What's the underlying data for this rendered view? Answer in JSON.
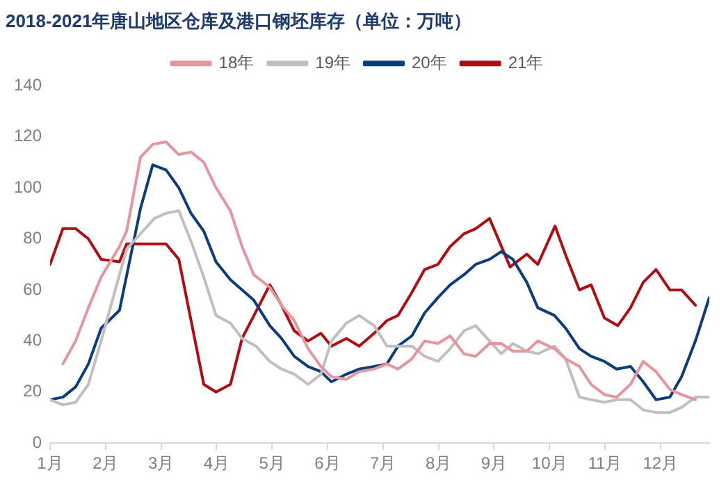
{
  "chart_data": {
    "type": "line",
    "title": "2018-2021年唐山地区仓库及港口钢坯库存（单位：万吨）",
    "xlim": [
      1,
      12.88
    ],
    "xticks": [
      {
        "value": 1,
        "label": "1月"
      },
      {
        "value": 2,
        "label": "2月"
      },
      {
        "value": 3,
        "label": "3月"
      },
      {
        "value": 4,
        "label": "4月"
      },
      {
        "value": 5,
        "label": "5月"
      },
      {
        "value": 6,
        "label": "6月"
      },
      {
        "value": 7,
        "label": "7月"
      },
      {
        "value": 8,
        "label": "8月"
      },
      {
        "value": 9,
        "label": "9月"
      },
      {
        "value": 10,
        "label": "10月"
      },
      {
        "value": 11,
        "label": "11月"
      },
      {
        "value": 12,
        "label": "12月"
      }
    ],
    "ylim": [
      0,
      140
    ],
    "yticks": [
      0,
      20,
      40,
      60,
      80,
      100,
      120,
      140
    ],
    "grid": false,
    "legend": "top",
    "marker": "none",
    "line_style": "solid",
    "series": [
      {
        "name": "18年",
        "color": "#e8949e",
        "x": [
          1.23,
          1.46,
          1.69,
          1.92,
          2.25,
          2.38,
          2.63,
          2.85,
          3.09,
          3.32,
          3.54,
          3.77,
          3.99,
          4.25,
          4.46,
          4.67,
          4.96,
          5.17,
          5.4,
          5.65,
          5.88,
          6.07,
          6.34,
          6.57,
          6.84,
          7.07,
          7.27,
          7.52,
          7.75,
          7.99,
          8.21,
          8.46,
          8.67,
          8.92,
          9.13,
          9.34,
          9.59,
          9.79,
          10.09,
          10.29,
          10.54,
          10.75,
          10.99,
          11.21,
          11.46,
          11.69,
          11.92,
          12.17,
          12.38,
          12.63
        ],
        "values": [
          31,
          40,
          53,
          65,
          77,
          83,
          112,
          117,
          118,
          113,
          114,
          110,
          100,
          91,
          77,
          66,
          61,
          54,
          48,
          37,
          30,
          26,
          25,
          28,
          29,
          31,
          29,
          33,
          40,
          39,
          42,
          35,
          34,
          39,
          39,
          36,
          36,
          40,
          37,
          33,
          30,
          23,
          19,
          18,
          23,
          32,
          28,
          21,
          19,
          17
        ]
      },
      {
        "name": "19年",
        "color": "#bfbfbf",
        "x": [
          1.0,
          1.23,
          1.46,
          1.69,
          1.92,
          2.25,
          2.38,
          2.67,
          2.88,
          3.09,
          3.32,
          3.54,
          3.77,
          3.99,
          4.25,
          4.46,
          4.71,
          4.96,
          5.17,
          5.4,
          5.65,
          5.88,
          6.07,
          6.34,
          6.57,
          6.84,
          7.07,
          7.27,
          7.52,
          7.75,
          7.99,
          8.21,
          8.46,
          8.67,
          8.92,
          9.13,
          9.34,
          9.59,
          9.79,
          10.09,
          10.29,
          10.54,
          10.75,
          10.99,
          11.21,
          11.46,
          11.69,
          11.92,
          12.17,
          12.38,
          12.63,
          12.88
        ],
        "values": [
          17,
          15,
          16,
          23,
          40,
          66,
          76,
          83,
          88,
          90,
          91,
          79,
          65,
          50,
          47,
          41,
          38,
          32,
          29,
          27,
          23,
          27,
          40,
          47,
          50,
          46,
          38,
          38,
          38,
          34,
          32,
          37,
          44,
          46,
          40,
          35,
          39,
          36,
          35,
          38,
          33,
          18,
          17,
          16,
          17,
          17,
          13,
          12,
          12,
          14,
          18,
          18
        ]
      },
      {
        "name": "20年",
        "color": "#0b3c7d",
        "x": [
          1.0,
          1.23,
          1.46,
          1.69,
          1.92,
          2.25,
          2.63,
          2.85,
          3.09,
          3.32,
          3.54,
          3.77,
          3.99,
          4.25,
          4.67,
          4.96,
          5.17,
          5.4,
          5.65,
          5.88,
          6.07,
          6.34,
          6.57,
          6.84,
          7.07,
          7.27,
          7.52,
          7.75,
          7.99,
          8.21,
          8.46,
          8.67,
          8.92,
          9.13,
          9.34,
          9.59,
          9.79,
          10.09,
          10.29,
          10.54,
          10.75,
          10.99,
          11.21,
          11.46,
          11.69,
          11.92,
          12.17,
          12.38,
          12.63,
          12.88
        ],
        "values": [
          17,
          18,
          22,
          31,
          45,
          52,
          92,
          109,
          107,
          100,
          90,
          83,
          71,
          64,
          56,
          46,
          41,
          34,
          30,
          28,
          24,
          27,
          29,
          30,
          31,
          38,
          42,
          51,
          57,
          62,
          66,
          70,
          72,
          75,
          72,
          63,
          53,
          50,
          45,
          37,
          34,
          32,
          29,
          30,
          24,
          17,
          18,
          26,
          40,
          57
        ]
      },
      {
        "name": "21年",
        "color": "#b00c12",
        "x": [
          1.0,
          1.23,
          1.46,
          1.69,
          1.92,
          2.25,
          2.38,
          2.67,
          2.88,
          3.09,
          3.32,
          3.77,
          3.99,
          4.25,
          4.46,
          4.96,
          5.17,
          5.4,
          5.65,
          5.88,
          6.07,
          6.34,
          6.57,
          6.84,
          7.07,
          7.27,
          7.52,
          7.75,
          7.99,
          8.21,
          8.46,
          8.67,
          8.92,
          9.29,
          9.59,
          9.79,
          10.1,
          10.32,
          10.54,
          10.75,
          10.99,
          11.23,
          11.46,
          11.69,
          11.92,
          12.17,
          12.38,
          12.63
        ],
        "values": [
          70,
          84,
          84,
          80,
          72,
          71,
          78,
          78,
          78,
          78,
          72,
          23,
          20,
          23,
          41,
          62,
          54,
          44,
          40,
          43,
          38,
          41,
          38,
          43,
          48,
          50,
          59,
          68,
          70,
          77,
          82,
          84,
          88,
          69,
          74,
          70,
          85,
          72,
          60,
          62,
          49,
          46,
          53,
          63,
          68,
          60,
          60,
          54
        ]
      }
    ]
  }
}
